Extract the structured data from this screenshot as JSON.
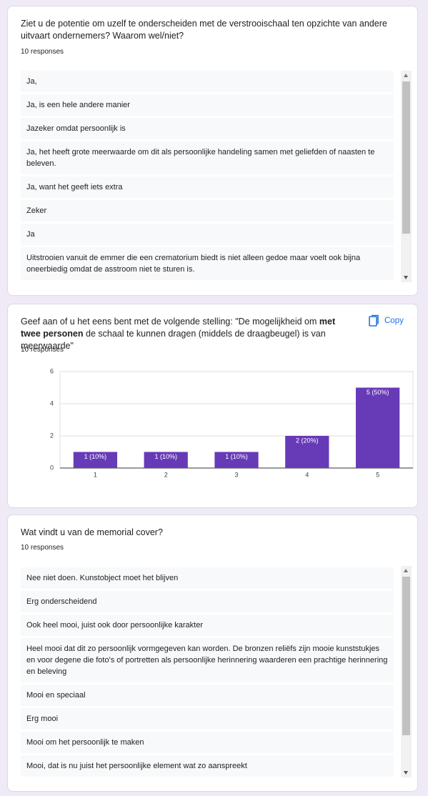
{
  "cards": [
    {
      "question": "Ziet u de potentie om uzelf te onderscheiden met de verstrooischaal ten opzichte van andere uitvaart ondernemers? Waarom wel/niet?",
      "responses": "10 responses",
      "answers": [
        "Ja,",
        "Ja, is een hele andere manier",
        "Jazeker omdat persoonlijk is",
        "Ja, het heeft grote meerwaarde om dit als persoonlijke handeling samen met geliefden of naasten te beleven.",
        "Ja, want het geeft iets extra",
        "Zeker",
        "Ja",
        "Uitstrooien vanuit de emmer die een crematorium biedt is niet alleen gedoe maar voelt ook bijna oneerbiedig omdat de asstroom niet te sturen is."
      ]
    },
    {
      "question_parts": [
        "Geef aan of u het eens bent met de volgende stelling: \"De mogelijkheid om ",
        "met twee personen",
        " de schaal te kunnen dragen (middels de draagbeugel) is van meerwaarde\""
      ],
      "copy": "Copy",
      "responses": "10 responses",
      "chart_data": {
        "type": "bar",
        "categories": [
          "1",
          "2",
          "3",
          "4",
          "5"
        ],
        "values": [
          1,
          1,
          1,
          2,
          5
        ],
        "value_labels": [
          "1 (10%)",
          "1 (10%)",
          "1 (10%)",
          "2 (20%)",
          "5 (50%)"
        ],
        "color": "#673ab7",
        "ylim": [
          0,
          6
        ],
        "yticks": [
          0,
          2,
          4,
          6
        ],
        "grid": true
      }
    },
    {
      "question": "Wat vindt u van de memorial cover?",
      "responses": "10 responses",
      "answers": [
        "Nee niet doen. Kunstobject moet het blijven",
        "Erg onderscheidend",
        "Ook heel mooi, juist ook door persoonlijke karakter",
        "Heel mooi dat dit zo persoonlijk vormgegeven kan worden. De bronzen reliëfs zijn mooie kunststukjes en voor degene die foto's of portretten als persoonlijke herinnering waarderen een prachtige herinnering en beleving",
        "Mooi en speciaal",
        "Erg mooi",
        "Mooi om het persoonlijk te maken",
        "Mooi, dat is nu juist het persoonlijke element wat zo aanspreekt"
      ]
    }
  ]
}
